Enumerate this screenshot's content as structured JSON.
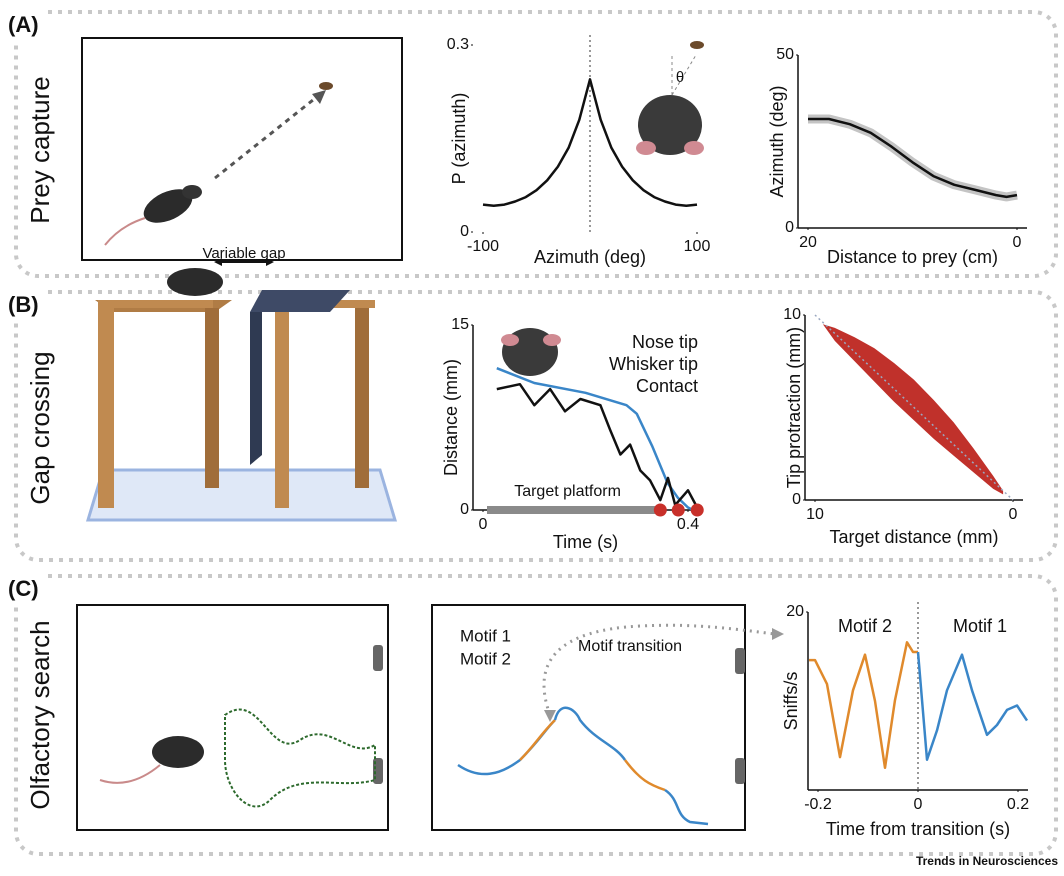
{
  "figure": {
    "panels": [
      {
        "label": "(A)",
        "title": "Prey capture"
      },
      {
        "label": "(B)",
        "title": "Gap crossing"
      },
      {
        "label": "(C)",
        "title": "Olfactory search"
      }
    ],
    "gap_label": "Variable gap",
    "theta": "θ",
    "trajectory_labels": [
      "Motif 1",
      "Motif 2"
    ],
    "transition_label": "Motif transition",
    "credit": "Trends in Neurosciences"
  },
  "chart_data": [
    {
      "type": "line",
      "xlabel": "Azimuth (deg)",
      "ylabel": "P (azimuth)",
      "x": [
        -100,
        -90,
        -80,
        -70,
        -60,
        -50,
        -40,
        -30,
        -20,
        -10,
        0,
        10,
        20,
        30,
        40,
        50,
        60,
        70,
        80,
        90,
        100
      ],
      "series": [
        {
          "color": "#111111",
          "values": [
            0.044,
            0.042,
            0.044,
            0.049,
            0.056,
            0.067,
            0.083,
            0.105,
            0.135,
            0.18,
            0.245,
            0.18,
            0.135,
            0.105,
            0.083,
            0.067,
            0.056,
            0.049,
            0.044,
            0.042,
            0.044
          ]
        }
      ],
      "xlim": [
        -100,
        100
      ],
      "ylim": [
        0,
        0.3
      ],
      "xticks": [
        -100,
        100
      ],
      "yticks": [
        0,
        0.3
      ],
      "vline": 0,
      "axes": false
    },
    {
      "type": "line",
      "xlabel": "Distance to prey (cm)",
      "ylabel": "Azimuth (deg)",
      "x": [
        20,
        18,
        16,
        14,
        12,
        10,
        8,
        6,
        4,
        2,
        1,
        0
      ],
      "series": [
        {
          "color": "#111111",
          "values": [
            31.5,
            31.5,
            30,
            27.5,
            23.5,
            19,
            15,
            12.5,
            11,
            9.5,
            9,
            9.5
          ]
        }
      ],
      "band": true,
      "xlim": [
        20,
        0
      ],
      "ylim": [
        0,
        50
      ],
      "xticks": [
        20,
        0
      ],
      "yticks": [
        0,
        50
      ],
      "axes": true
    },
    {
      "type": "line",
      "xlabel": "Time (s)",
      "ylabel": "Distance (mm)",
      "annotation": "Target platform",
      "series": [
        {
          "name": "Nose tip",
          "color": "#3a86c8",
          "x": [
            0.027,
            0.1,
            0.2,
            0.28,
            0.3,
            0.33,
            0.36,
            0.38,
            0.4,
            0.41
          ],
          "values": [
            11.5,
            10.3,
            9.5,
            8.5,
            7.8,
            5.2,
            2.2,
            1.0,
            0.2,
            0
          ]
        },
        {
          "name": "Whisker tip",
          "color": "#111111",
          "x": [
            0.027,
            0.072,
            0.1,
            0.131,
            0.16,
            0.19,
            0.229,
            0.248,
            0.268,
            0.287,
            0.307,
            0.326,
            0.346,
            0.361,
            0.375,
            0.4,
            0.418
          ],
          "values": [
            9.8,
            10.2,
            8.5,
            9.8,
            8.0,
            9.0,
            8.5,
            6.5,
            4.5,
            5.3,
            3.2,
            2.4,
            0.8,
            2.6,
            0.4,
            1.6,
            0.2
          ]
        },
        {
          "name": "Contact",
          "color": "#c8302a",
          "style": "points",
          "x": [
            0.346,
            0.381,
            0.418
          ],
          "values": [
            0,
            0,
            0
          ]
        }
      ],
      "xlim": [
        0,
        0.4
      ],
      "ylim": [
        0,
        15
      ],
      "xticks": [
        0,
        0.4
      ],
      "yticks": [
        0,
        15
      ],
      "axes": true
    },
    {
      "type": "area",
      "xlabel": "Target distance (mm)",
      "ylabel": "Tip protraction (mm)",
      "color": "#c0312b",
      "x": [
        9.6,
        9,
        8,
        7,
        6,
        5,
        4,
        3,
        2,
        1,
        0.5
      ],
      "values": [
        9.5,
        9.3,
        8.8,
        8.2,
        7.4,
        6.5,
        5.4,
        4.2,
        2.8,
        1.3,
        0.5
      ],
      "lower": [
        9.5,
        8.6,
        7.5,
        6.4,
        5.3,
        4.3,
        3.3,
        2.4,
        1.5,
        0.6,
        0.3
      ],
      "diagonal": true,
      "xlim": [
        10,
        0
      ],
      "ylim": [
        0,
        10
      ],
      "xticks": [
        10,
        0
      ],
      "yticks": [
        0,
        10
      ],
      "axes": true
    },
    {
      "type": "line",
      "xlabel": "Time from transition (s)",
      "ylabel": "Sniffs/s",
      "series": [
        {
          "name": "Motif 2",
          "color": "#e08a2c",
          "x": [
            -0.218,
            -0.206,
            -0.182,
            -0.156,
            -0.13,
            -0.106,
            -0.086,
            -0.066,
            -0.046,
            -0.022,
            -0.01,
            0
          ],
          "values": [
            14.6,
            14.6,
            11.9,
            3.7,
            11.2,
            15.2,
            10,
            2.5,
            10.1,
            16.6,
            15.5,
            15.5
          ]
        },
        {
          "name": "Motif 1",
          "color": "#3a86c8",
          "x": [
            0,
            0.018,
            0.038,
            0.058,
            0.088,
            0.108,
            0.138,
            0.158,
            0.178,
            0.198,
            0.218
          ],
          "values": [
            15.5,
            3.4,
            6.7,
            11.2,
            15.2,
            11.2,
            6.2,
            7.3,
            9.0,
            9.5,
            7.8
          ]
        }
      ],
      "xlim": [
        -0.2,
        0.2
      ],
      "ylim": [
        0,
        20
      ],
      "xticks": [
        -0.2,
        0,
        0.2
      ],
      "yticks": [
        20
      ],
      "vline": 0,
      "axes": true
    }
  ]
}
